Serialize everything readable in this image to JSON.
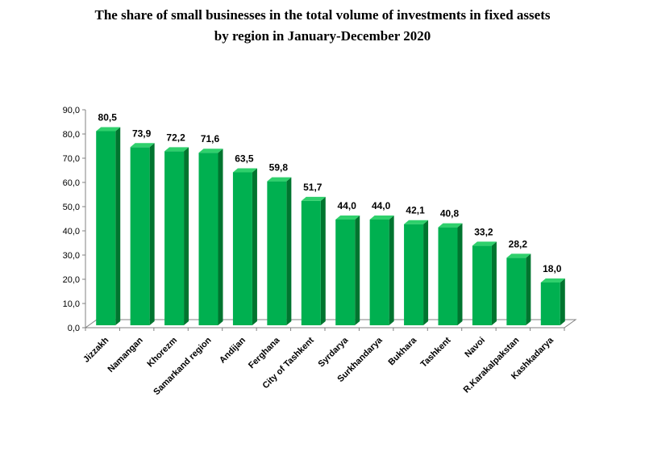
{
  "chart_data": {
    "type": "bar",
    "title_line1": "The share of small businesses in the total volume of investments in fixed assets",
    "title_line2": "by region in January-December 2020",
    "categories": [
      "Jizzakh",
      "Namangan",
      "Khorezm",
      "Samarkand region",
      "Andijan",
      "Ferghana",
      "City of Tashkent",
      "Syrdarya",
      "Surkhandarya",
      "Bukhara",
      "Tashkent",
      "Navoi",
      "R.Karakalpakstan",
      "Kashkadarya"
    ],
    "values": [
      80.5,
      73.9,
      72.2,
      71.6,
      63.5,
      59.8,
      51.7,
      44.0,
      44.0,
      42.1,
      40.8,
      33.2,
      28.2,
      18.0
    ],
    "data_labels": [
      "80,5",
      "73,9",
      "72,2",
      "71,6",
      "63,5",
      "59,8",
      "51,7",
      "44,0",
      "44,0",
      "42,1",
      "40,8",
      "33,2",
      "28,2",
      "18,0"
    ],
    "y_ticks": [
      "0,0",
      "10,0",
      "20,0",
      "30,0",
      "40,0",
      "50,0",
      "60,0",
      "70,0",
      "80,0",
      "90,0"
    ],
    "ylim": [
      0,
      90
    ],
    "xlabel": "",
    "ylabel": "",
    "legend": "none",
    "grid": false,
    "colors": {
      "bar_front": "#00b050",
      "bar_side": "#00752f",
      "bar_top": "#2fd06c",
      "axis": "#808080"
    }
  }
}
